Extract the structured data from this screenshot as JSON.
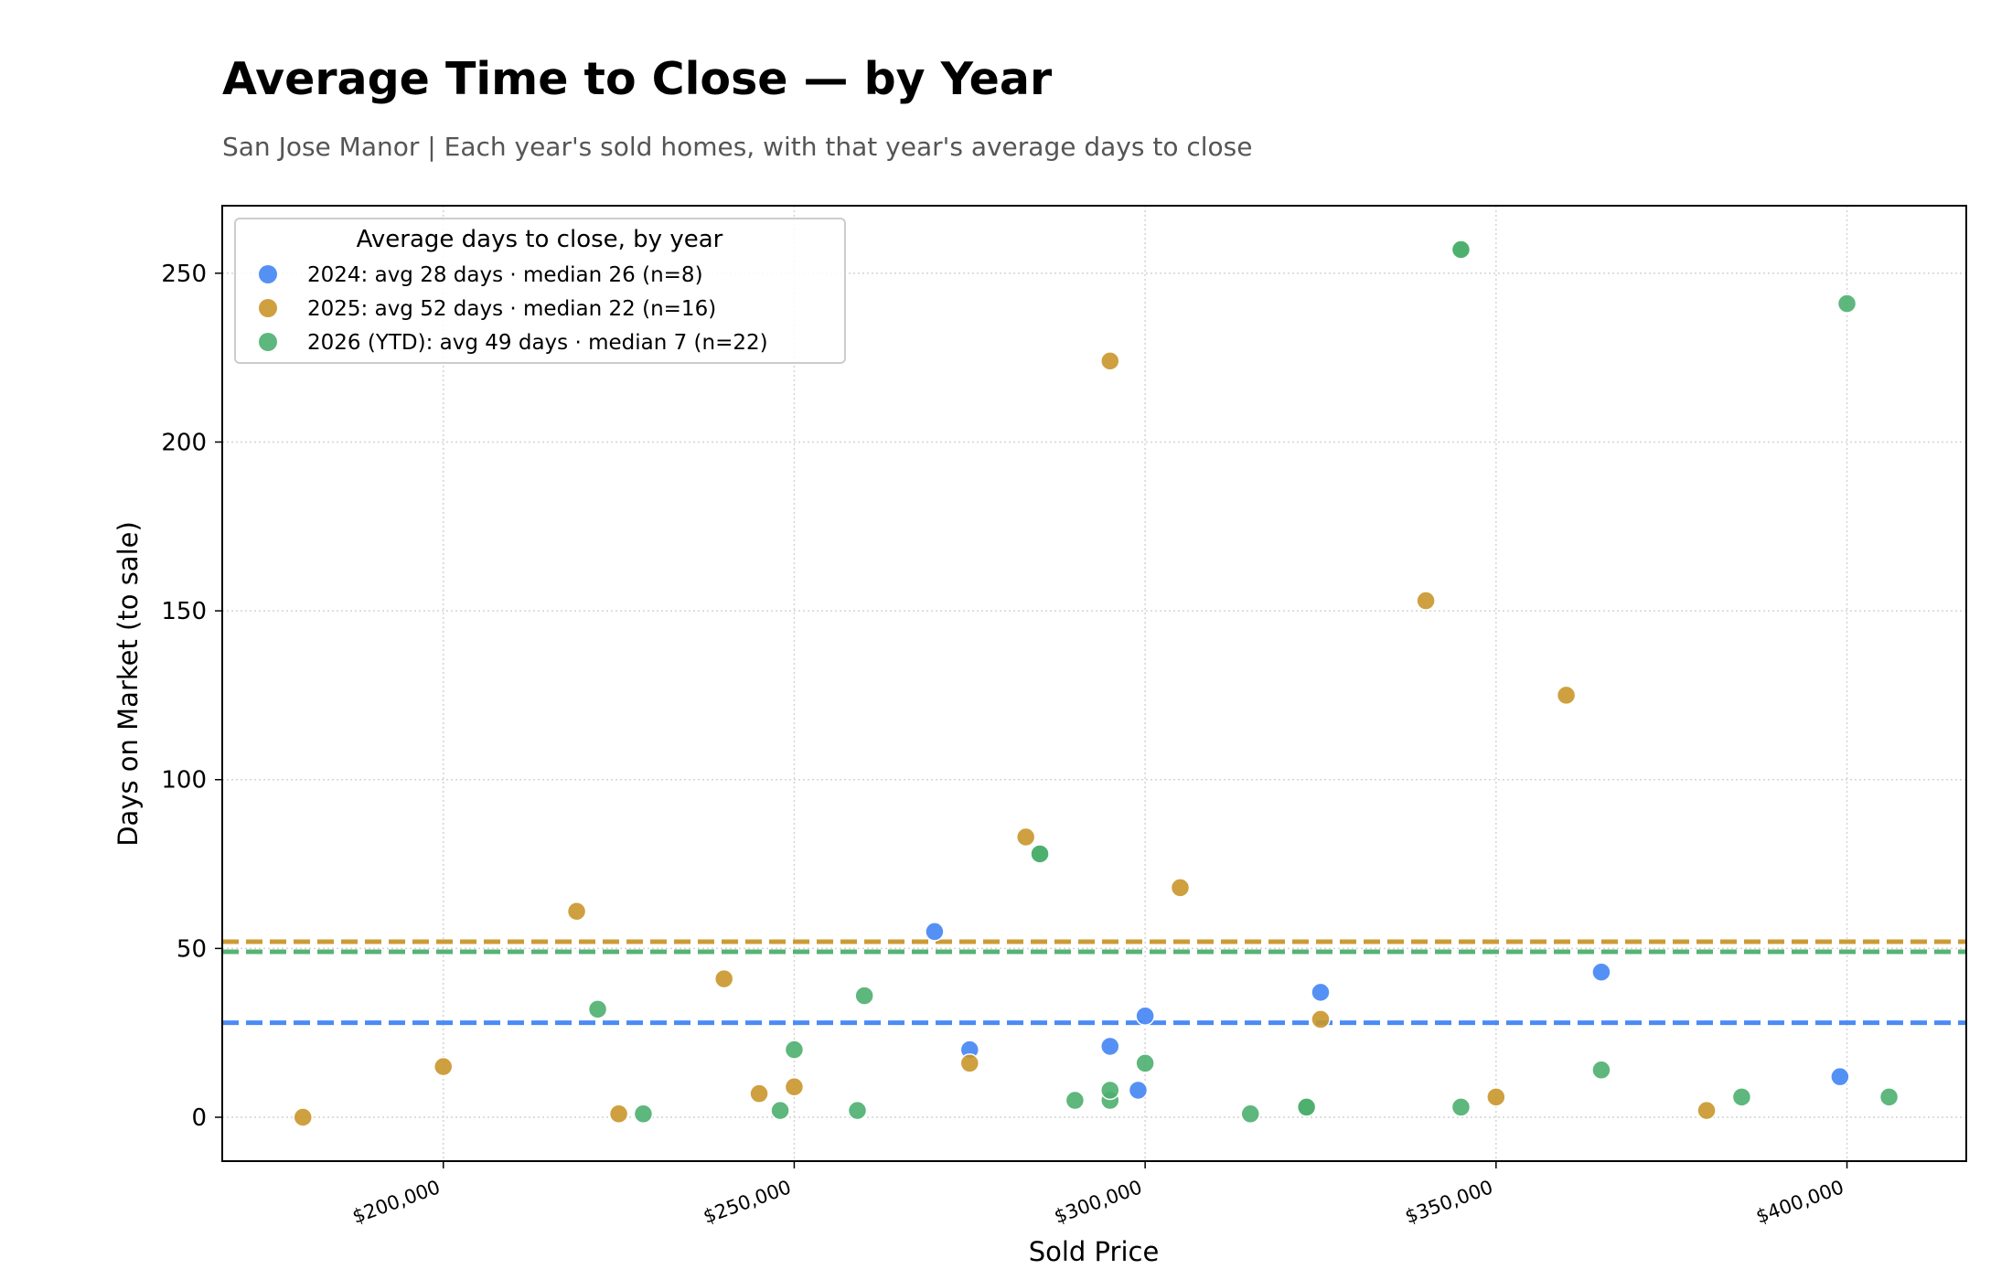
{
  "title": "Average Time to Close — by Year",
  "subtitle": "San Jose Manor  |  Each year's sold homes, with that year's average days to close",
  "colors": {
    "2024": "#4285f4",
    "2025": "#c9962b",
    "2026": "#4caf6e",
    "grid": "#d4d4d4",
    "axis": "#000000"
  },
  "chart_data": {
    "type": "scatter",
    "xlabel": "Sold Price",
    "ylabel": "Days on Market (to sale)",
    "xlim": [
      168500,
      417000
    ],
    "ylim": [
      -13,
      270
    ],
    "x_ticks": [
      200000,
      250000,
      300000,
      350000,
      400000
    ],
    "x_tick_labels": [
      "$200,000",
      "$250,000",
      "$300,000",
      "$350,000",
      "$400,000"
    ],
    "y_ticks": [
      0,
      50,
      100,
      150,
      200,
      250
    ],
    "y_tick_labels": [
      "0",
      "50",
      "100",
      "150",
      "200",
      "250"
    ],
    "grid": true,
    "legend": {
      "title": "Average days to close, by year",
      "placement": "top-left"
    },
    "series": [
      {
        "key": "2024",
        "name": "2024: avg 28 days  ·  median 26  (n=8)",
        "average": 28,
        "points": [
          [
            270000,
            55
          ],
          [
            275000,
            20
          ],
          [
            295000,
            21
          ],
          [
            299000,
            8
          ],
          [
            300000,
            30
          ],
          [
            325000,
            37
          ],
          [
            365000,
            43
          ],
          [
            399000,
            12
          ]
        ]
      },
      {
        "key": "2025",
        "name": "2025: avg 52 days  ·  median 22  (n=16)",
        "average": 52,
        "points": [
          [
            180000,
            0
          ],
          [
            200000,
            15
          ],
          [
            219000,
            61
          ],
          [
            225000,
            1
          ],
          [
            240000,
            41
          ],
          [
            245000,
            7
          ],
          [
            250000,
            9
          ],
          [
            275000,
            16
          ],
          [
            283000,
            83
          ],
          [
            295000,
            224
          ],
          [
            305000,
            68
          ],
          [
            325000,
            29
          ],
          [
            340000,
            153
          ],
          [
            350000,
            6
          ],
          [
            360000,
            125
          ],
          [
            380000,
            2
          ]
        ]
      },
      {
        "key": "2026",
        "name": "2026 (YTD): avg 49 days  ·  median 7  (n=22)",
        "average": 49,
        "points": [
          [
            222000,
            32
          ],
          [
            228500,
            1
          ],
          [
            248000,
            2
          ],
          [
            250000,
            20
          ],
          [
            259000,
            2
          ],
          [
            260000,
            36
          ],
          [
            285000,
            78
          ],
          [
            290000,
            5
          ],
          [
            295000,
            5
          ],
          [
            295000,
            8
          ],
          [
            300000,
            16
          ],
          [
            315000,
            1
          ],
          [
            323000,
            3
          ],
          [
            323000,
            3
          ],
          [
            345000,
            3
          ],
          [
            345000,
            257
          ],
          [
            345000,
            257
          ],
          [
            365000,
            14
          ],
          [
            385000,
            6
          ],
          [
            400000,
            241
          ],
          [
            406000,
            6
          ],
          [
            285000,
            78
          ]
        ]
      }
    ]
  }
}
